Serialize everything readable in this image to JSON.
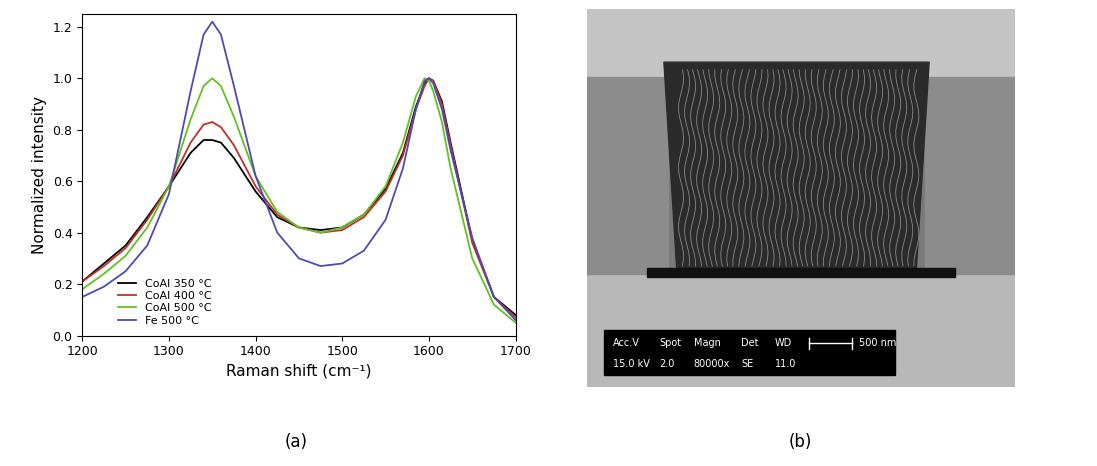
{
  "chart_data": [
    {
      "type": "line",
      "x_label": "Raman shift (cm⁻¹)",
      "y_label": "Normalized intensity",
      "x": [
        1200,
        1225,
        1250,
        1275,
        1300,
        1325,
        1340,
        1350,
        1360,
        1375,
        1400,
        1425,
        1450,
        1475,
        1500,
        1525,
        1550,
        1570,
        1585,
        1595,
        1600,
        1605,
        1615,
        1625,
        1650,
        1675,
        1700
      ],
      "series": [
        {
          "name": "CoAl 350 °C",
          "color": "#000000",
          "values": [
            0.21,
            0.28,
            0.35,
            0.46,
            0.58,
            0.71,
            0.76,
            0.76,
            0.75,
            0.69,
            0.56,
            0.46,
            0.42,
            0.41,
            0.42,
            0.47,
            0.57,
            0.71,
            0.89,
            0.98,
            1.0,
            0.99,
            0.91,
            0.75,
            0.37,
            0.15,
            0.08
          ]
        },
        {
          "name": "CoAl 400 °C",
          "color": "#c0302b",
          "values": [
            0.21,
            0.27,
            0.34,
            0.45,
            0.58,
            0.75,
            0.82,
            0.83,
            0.81,
            0.74,
            0.58,
            0.47,
            0.42,
            0.4,
            0.41,
            0.46,
            0.56,
            0.7,
            0.88,
            0.97,
            1.0,
            0.99,
            0.9,
            0.74,
            0.36,
            0.15,
            0.07
          ]
        },
        {
          "name": "CoAl 500 °C",
          "color": "#5fc21e",
          "values": [
            0.18,
            0.24,
            0.31,
            0.42,
            0.58,
            0.84,
            0.97,
            1.0,
            0.97,
            0.85,
            0.62,
            0.48,
            0.42,
            0.4,
            0.42,
            0.47,
            0.58,
            0.75,
            0.93,
            1.0,
            0.99,
            0.95,
            0.83,
            0.65,
            0.3,
            0.12,
            0.05
          ]
        },
        {
          "name": "Fe 500 °C",
          "color": "#4b4bb5",
          "values": [
            0.15,
            0.19,
            0.25,
            0.35,
            0.55,
            0.95,
            1.17,
            1.22,
            1.17,
            0.97,
            0.62,
            0.4,
            0.3,
            0.27,
            0.28,
            0.33,
            0.45,
            0.65,
            0.88,
            0.99,
            1.0,
            0.98,
            0.88,
            0.72,
            0.38,
            0.15,
            0.06
          ]
        }
      ],
      "xlim": [
        1200,
        1700
      ],
      "xticks": [
        1200,
        1300,
        1400,
        1500,
        1600,
        1700
      ],
      "ylim": [
        0,
        1.25
      ],
      "yticks": [
        {
          "value": 0,
          "label": "0.0"
        },
        {
          "value": 0.2,
          "label": "0.2"
        },
        {
          "value": 0.4,
          "label": "0.4"
        },
        {
          "value": 0.6,
          "label": "0.6"
        },
        {
          "value": 0.8,
          "label": "0.8"
        },
        {
          "value": 1.0,
          "label": "1.0"
        },
        {
          "value": 1.2,
          "label": "1.2"
        }
      ],
      "legend": "lower left",
      "grid": false
    }
  ],
  "micrograph": {
    "info_header": [
      "Acc.V",
      "Spot",
      "Magn",
      "Det",
      "WD"
    ],
    "info_values": [
      "15.0 kV",
      "2.0",
      "80000x",
      "SE",
      "11.0"
    ],
    "scale_bar": "500 nm"
  },
  "panel_labels": [
    "(a)",
    "(b)"
  ]
}
